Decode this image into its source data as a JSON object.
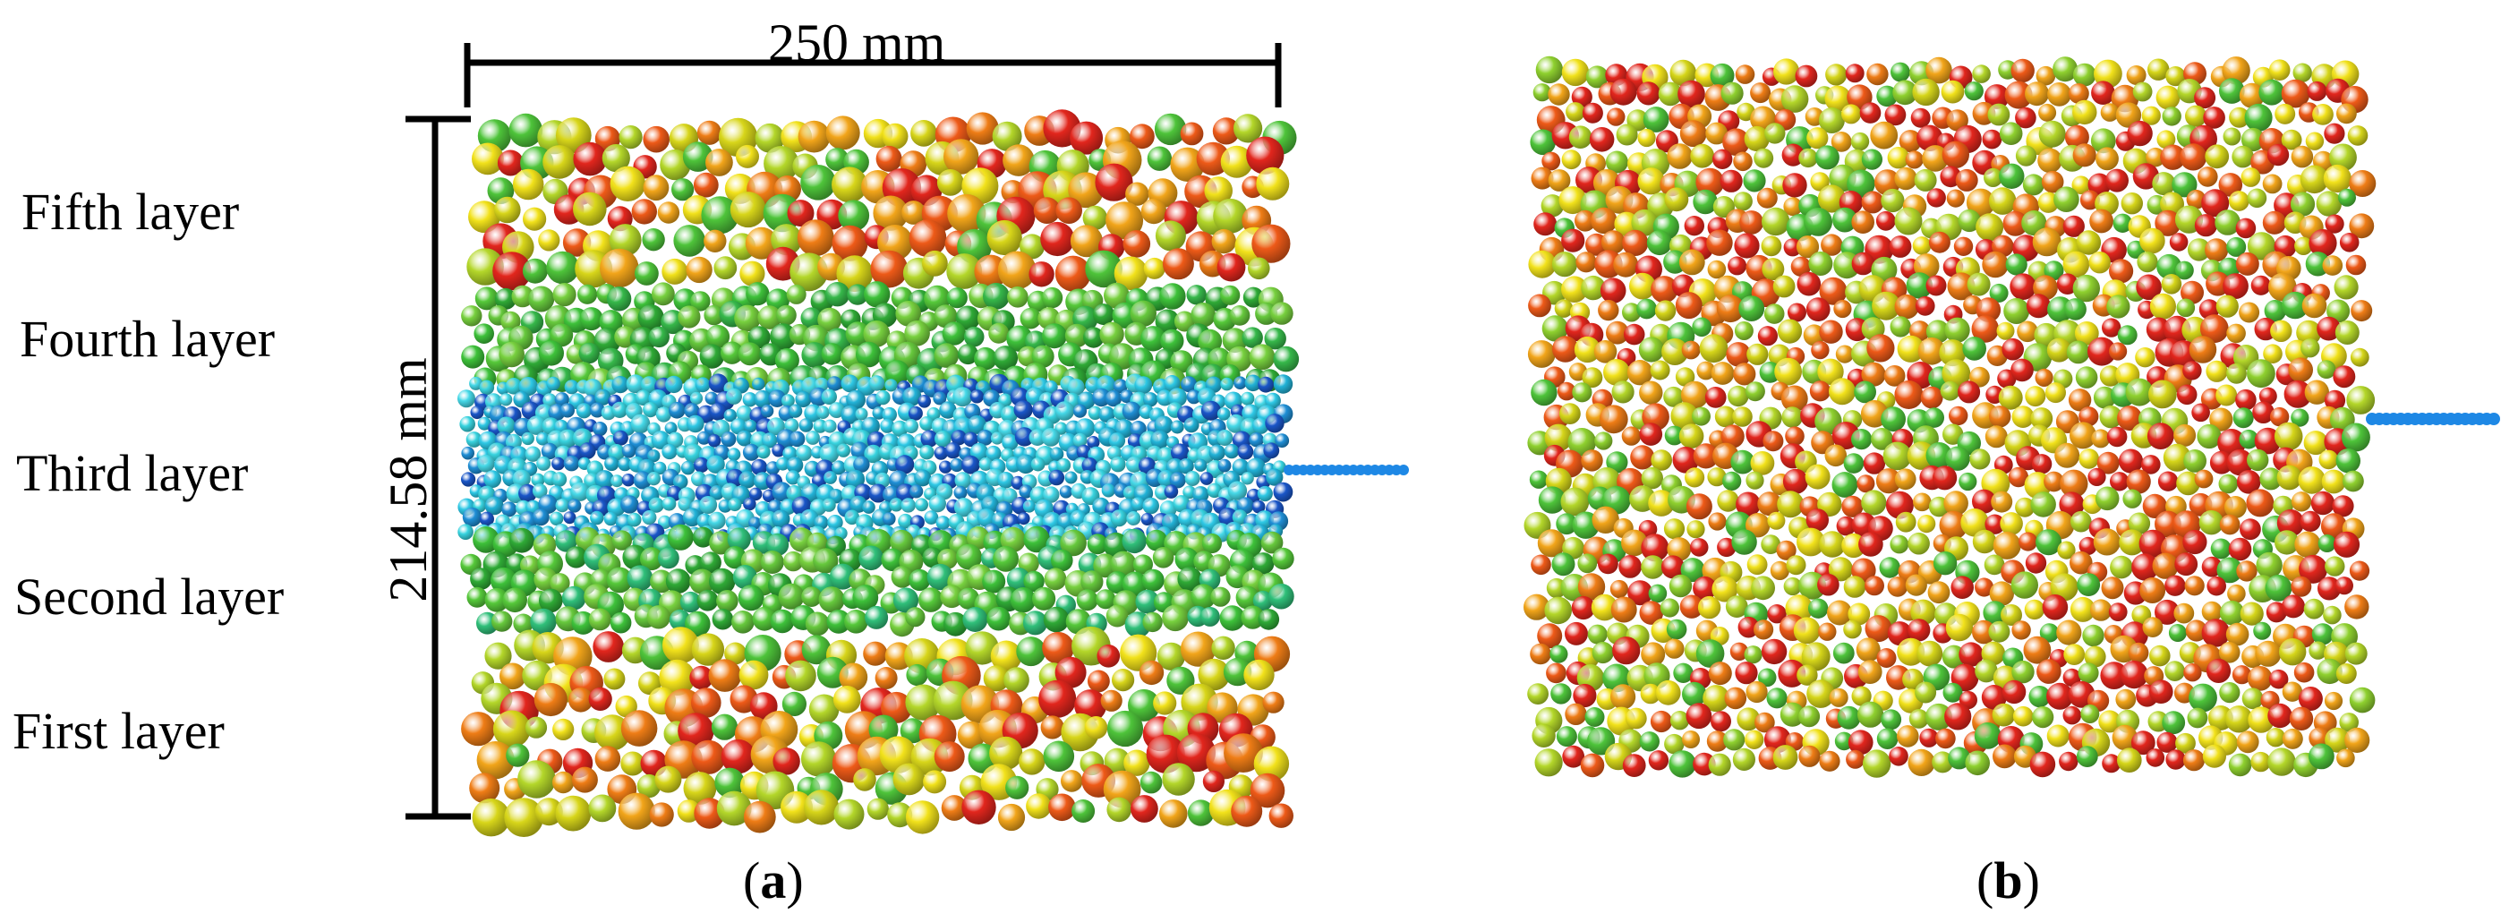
{
  "dimensions": {
    "width_label": "250 mm",
    "height_label": "214.58 mm"
  },
  "layers": [
    {
      "name": "Fifth layer",
      "palette": [
        "#f2e21b",
        "#d8d61a",
        "#b4d72a",
        "#f2a51a",
        "#ef7d16",
        "#e2261d",
        "#ee5a18",
        "#4ec43a"
      ]
    },
    {
      "name": "Fourth layer",
      "palette": [
        "#3ec23a",
        "#56c93a",
        "#2faa36",
        "#78d13f",
        "#36b84a",
        "#67c93d"
      ]
    },
    {
      "name": "Third layer",
      "palette": [
        "#2ec9e6",
        "#22b3d8",
        "#38d4e0",
        "#1f8fd6",
        "#1a56c8",
        "#46d9e8"
      ]
    },
    {
      "name": "Second layer",
      "palette": [
        "#3ec23a",
        "#56c93a",
        "#2faa36",
        "#78d13f",
        "#30c07a",
        "#67c93d"
      ]
    },
    {
      "name": "First layer",
      "palette": [
        "#f2e21b",
        "#d8d61a",
        "#b4d72a",
        "#f2a51a",
        "#ef7d16",
        "#e2261d",
        "#ee5a18",
        "#4ec43a"
      ]
    }
  ],
  "panel_b_palette": [
    "#f2e21b",
    "#d6d61a",
    "#b4d72a",
    "#f2a51a",
    "#ef7d16",
    "#e2261d",
    "#e2261d",
    "#ee5a18",
    "#4ec43a",
    "#8fd12f"
  ],
  "probe_color": "#1e88e5",
  "captions": {
    "a": {
      "open": "(",
      "letter": "a",
      "close": ")"
    },
    "b": {
      "open": "(",
      "letter": "b",
      "close": ")"
    }
  }
}
